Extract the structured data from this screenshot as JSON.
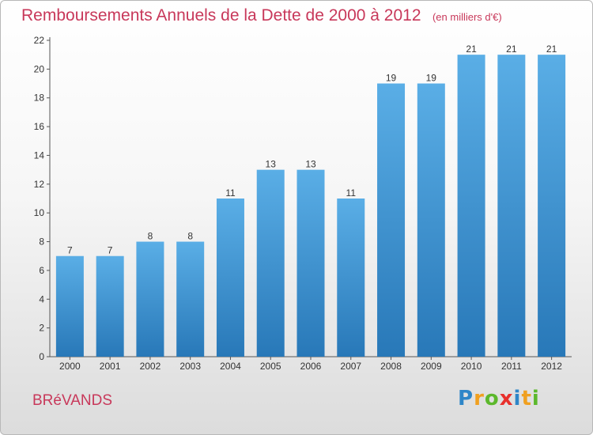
{
  "title": "Remboursements Annuels de la Dette de 2000 à 2012",
  "unit_note": "(en milliers d'€)",
  "city": "BRéVANDS",
  "brand": {
    "text": "Proxiti",
    "letters": [
      {
        "ch": "P",
        "color": "#2e86c8"
      },
      {
        "ch": "r",
        "color": "#f0a020"
      },
      {
        "ch": "o",
        "color": "#5cb82c"
      },
      {
        "ch": "x",
        "color": "#e8302c"
      },
      {
        "ch": "i",
        "color": "#2e86c8"
      },
      {
        "ch": "t",
        "color": "#f0a020"
      },
      {
        "ch": "i",
        "color": "#5cb82c"
      }
    ]
  },
  "colors": {
    "bar_top": "#5aaee6",
    "bar_bottom": "#2878b8",
    "accent_text": "#c8385a"
  },
  "chart_data": {
    "type": "bar",
    "categories": [
      "2000",
      "2001",
      "2002",
      "2003",
      "2004",
      "2005",
      "2006",
      "2007",
      "2008",
      "2009",
      "2010",
      "2011",
      "2012"
    ],
    "values": [
      7,
      7,
      8,
      8,
      11,
      13,
      13,
      11,
      19,
      19,
      21,
      21,
      21
    ],
    "data_labels": [
      "7",
      "7",
      "8",
      "8",
      "11",
      "13",
      "13",
      "11",
      "19",
      "19",
      "21",
      "21",
      "21"
    ],
    "yticks": [
      0,
      2,
      4,
      6,
      8,
      10,
      12,
      14,
      16,
      18,
      20,
      22
    ],
    "ylim": [
      0,
      22
    ],
    "grid": false,
    "legend": "none"
  }
}
